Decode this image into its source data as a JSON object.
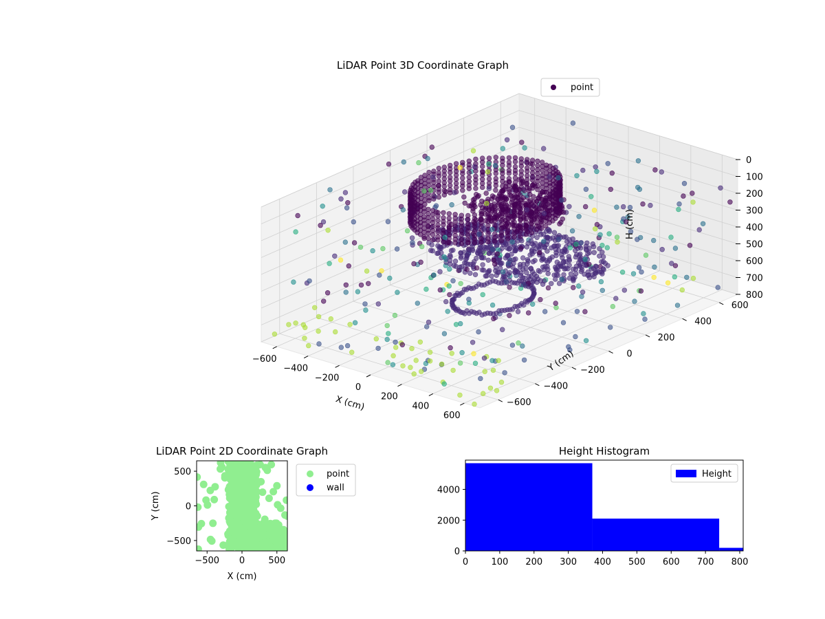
{
  "chart_data": [
    {
      "type": "scatter",
      "projection": "3d",
      "title": "LiDAR Point 3D Coordinate Graph",
      "xlabel": "X (cm)",
      "ylabel": "Y (cm)",
      "zlabel": "H (cm)",
      "xlim": [
        -700,
        700
      ],
      "ylim": [
        -700,
        700
      ],
      "zlim": [
        800,
        0
      ],
      "z_inverted": true,
      "xticks": [
        "−600",
        "−400",
        "−200",
        "0",
        "200",
        "400",
        "600"
      ],
      "yticks": [
        "−600",
        "−400",
        "−200",
        "0",
        "200",
        "400",
        "600"
      ],
      "zticks": [
        "0",
        "100",
        "200",
        "300",
        "400",
        "500",
        "600",
        "700",
        "800"
      ],
      "colormap": "viridis",
      "legend": {
        "placement": "top-right",
        "entries": [
          "point"
        ],
        "color": "#440154"
      },
      "series": [
        {
          "name": "point",
          "structures": [
            {
              "kind": "wall-ring",
              "center": [
                -150,
                50
              ],
              "radius": 330,
              "h_range": [
                80,
                250
              ]
            },
            {
              "kind": "floor-disc",
              "center": [
                0,
                100
              ],
              "radius": 500,
              "h": 460
            },
            {
              "kind": "ring",
              "center": [
                30,
                -60
              ],
              "radius": 170,
              "h": 640
            }
          ],
          "scatter_note": "sparse points spread over X −700..700, Y −700..700, H 0..800"
        }
      ]
    },
    {
      "type": "scatter",
      "title": "LiDAR Point 2D Coordinate Graph",
      "xlabel": "X (cm)",
      "ylabel": "Y (cm)",
      "xlim": [
        -650,
        650
      ],
      "ylim": [
        -650,
        650
      ],
      "xticks": [
        "−500",
        "0",
        "500"
      ],
      "yticks": [
        "−500",
        "0",
        "500"
      ],
      "legend": {
        "placement": "outside-right",
        "entries": [
          {
            "name": "point",
            "color": "#90ee90"
          },
          {
            "name": "wall",
            "color": "#0000ff"
          }
        ]
      }
    },
    {
      "type": "bar",
      "title": "Height Histogram",
      "legend": {
        "placement": "top-right",
        "entries": [
          "Height"
        ],
        "color": "#0000ff"
      },
      "bins": [
        [
          0,
          370
        ],
        [
          370,
          740
        ],
        [
          740,
          810
        ]
      ],
      "values": [
        5700,
        2100,
        200
      ],
      "xlim": [
        0,
        810
      ],
      "ylim": [
        0,
        5900
      ],
      "xticks": [
        "0",
        "100",
        "200",
        "300",
        "400",
        "500",
        "600",
        "700",
        "800"
      ],
      "yticks": [
        "0",
        "2000",
        "4000"
      ]
    }
  ]
}
